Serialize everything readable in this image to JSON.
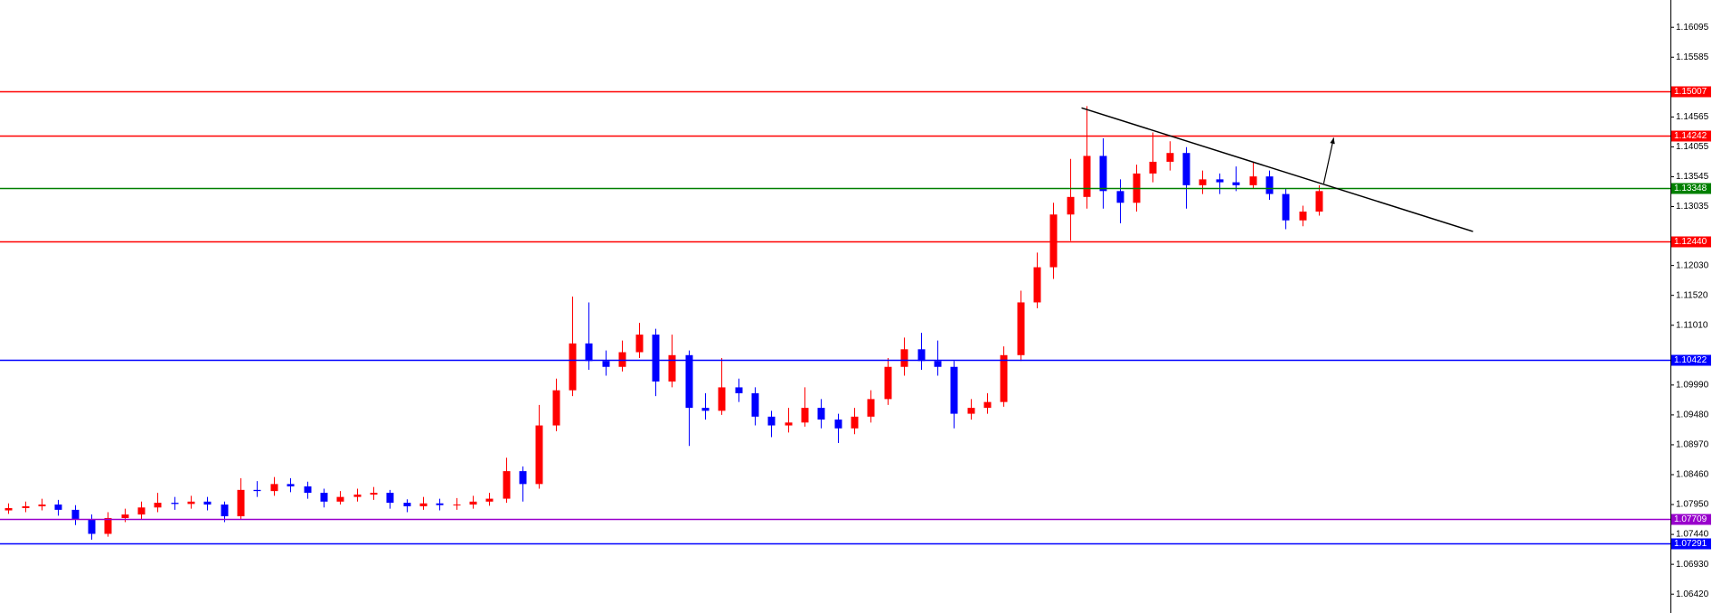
{
  "chart_data": {
    "type": "candlestick",
    "up_color": "#ff0000",
    "down_color": "#0000ff",
    "xlim": [
      -0.5,
      100.2
    ],
    "ylim": [
      1.06099,
      1.16561
    ],
    "yticks": [
      1.16095,
      1.15585,
      1.14565,
      1.14055,
      1.13545,
      1.13035,
      {
        "value": 1.1203,
        "label": "1.12030"
      },
      {
        "value": 1.1152,
        "label": "1.11520"
      },
      {
        "value": 1.1101,
        "label": "1.11010"
      },
      {
        "value": 1.0999,
        "label": "1.09990"
      },
      {
        "value": 1.0948,
        "label": "1.09480"
      },
      {
        "value": 1.0897,
        "label": "1.08970"
      },
      {
        "value": 1.0846,
        "label": "1.08460"
      },
      {
        "value": 1.0795,
        "label": "1.07950"
      },
      {
        "value": 1.0744,
        "label": "1.07440"
      },
      {
        "value": 1.0693,
        "label": "1.06930"
      },
      {
        "value": 1.0642,
        "label": "1.06420"
      }
    ],
    "open": [
      1.0785,
      1.0789,
      1.0792,
      1.0795,
      1.0786,
      1.077,
      1.0745,
      1.0772,
      1.0778,
      1.079,
      1.0798,
      1.0796,
      1.08,
      1.0795,
      1.0775,
      1.082,
      1.0818,
      1.083,
      1.0826,
      1.0815,
      1.08,
      1.0808,
      1.0812,
      1.0815,
      1.0798,
      1.0792,
      1.0797,
      1.0794,
      1.0795,
      1.08,
      1.0805,
      1.0852,
      1.083,
      1.093,
      1.099,
      1.107,
      1.104,
      1.103,
      1.1055,
      1.1085,
      1.1005,
      1.105,
      1.096,
      1.0955,
      1.0995,
      1.0985,
      1.0945,
      1.093,
      1.0935,
      1.096,
      1.094,
      1.0925,
      1.0945,
      1.0975,
      1.103,
      1.106,
      1.104,
      1.103,
      1.095,
      1.096,
      1.097,
      1.105,
      1.114,
      1.12,
      1.129,
      1.132,
      1.139,
      1.133,
      1.131,
      1.136,
      1.138,
      1.1395,
      1.134,
      1.135,
      1.1345,
      1.134,
      1.1355,
      1.1325,
      1.128,
      1.1295
    ],
    "high": [
      1.0797,
      1.08,
      1.0805,
      1.0803,
      1.0794,
      1.0778,
      1.0782,
      1.0788,
      1.08,
      1.0815,
      1.0808,
      1.081,
      1.0808,
      1.08,
      1.084,
      1.0835,
      1.0842,
      1.084,
      1.0834,
      1.0822,
      1.0818,
      1.0822,
      1.0825,
      1.082,
      1.0804,
      1.0808,
      1.0805,
      1.0806,
      1.081,
      1.0815,
      1.0875,
      1.086,
      1.0965,
      1.101,
      1.115,
      1.114,
      1.1058,
      1.1075,
      1.1105,
      1.1095,
      1.1085,
      1.1058,
      1.0985,
      1.1045,
      1.101,
      1.0995,
      1.0955,
      1.096,
      1.0995,
      1.0975,
      1.095,
      1.096,
      1.099,
      1.1045,
      1.108,
      1.1088,
      1.1075,
      1.104,
      1.0975,
      1.0985,
      1.1065,
      1.116,
      1.1225,
      1.131,
      1.1385,
      1.1475,
      1.142,
      1.135,
      1.1375,
      1.143,
      1.1415,
      1.1405,
      1.1365,
      1.136,
      1.1372,
      1.138,
      1.1365,
      1.1335,
      1.1305,
      1.134
    ],
    "low": [
      1.0779,
      1.0782,
      1.0785,
      1.0776,
      1.076,
      1.0735,
      1.074,
      1.0765,
      1.077,
      1.0782,
      1.0786,
      1.0788,
      1.0785,
      1.0765,
      1.077,
      1.0808,
      1.081,
      1.0816,
      1.0805,
      1.079,
      1.0795,
      1.08,
      1.0803,
      1.0788,
      1.0782,
      1.0786,
      1.0785,
      1.0786,
      1.0788,
      1.0793,
      1.0798,
      1.08,
      1.0822,
      1.092,
      1.098,
      1.1025,
      1.1015,
      1.1022,
      1.1045,
      1.098,
      1.0995,
      1.0895,
      1.094,
      1.0948,
      1.097,
      1.093,
      1.091,
      1.0918,
      1.0928,
      1.0925,
      1.09,
      1.0915,
      1.0935,
      1.0965,
      1.1015,
      1.1025,
      1.1015,
      1.0925,
      1.094,
      1.095,
      1.0962,
      1.104,
      1.113,
      1.118,
      1.1245,
      1.13,
      1.13,
      1.1275,
      1.1295,
      1.1345,
      1.1365,
      1.13,
      1.1325,
      1.1325,
      1.133,
      1.1335,
      1.1315,
      1.1265,
      1.127,
      1.1288
    ],
    "close": [
      1.0789,
      1.0792,
      1.0795,
      1.0786,
      1.077,
      1.0745,
      1.0772,
      1.0778,
      1.079,
      1.0798,
      1.0796,
      1.08,
      1.0795,
      1.0775,
      1.082,
      1.0818,
      1.083,
      1.0826,
      1.0815,
      1.08,
      1.0808,
      1.0812,
      1.0815,
      1.0798,
      1.0792,
      1.0797,
      1.0794,
      1.0795,
      1.08,
      1.0805,
      1.0852,
      1.083,
      1.093,
      1.099,
      1.107,
      1.104,
      1.103,
      1.1055,
      1.1085,
      1.1005,
      1.105,
      1.096,
      1.0955,
      1.0995,
      1.0985,
      1.0945,
      1.093,
      1.0935,
      1.096,
      1.094,
      1.0925,
      1.0945,
      1.0975,
      1.103,
      1.106,
      1.104,
      1.103,
      1.095,
      1.096,
      1.097,
      1.105,
      1.114,
      1.12,
      1.129,
      1.132,
      1.139,
      1.133,
      1.131,
      1.136,
      1.138,
      1.1395,
      1.134,
      1.135,
      1.1345,
      1.134,
      1.1355,
      1.1325,
      1.128,
      1.1295,
      1.133
    ],
    "levels": {
      "values": [
        1.15007,
        1.14242,
        1.13348,
        1.1244,
        1.10422,
        1.07709,
        1.07291
      ],
      "value_labels": [
        "1.15007",
        "1.14242",
        "1.13348",
        "1.12440",
        "1.10422",
        "1.07709",
        "1.07291"
      ],
      "colors": [
        "#ff0000",
        "#ff0000",
        "#008000",
        "#ff0000",
        "#0000ff",
        "#9900cc",
        "#0000ff"
      ]
    },
    "trendline": {
      "x": [
        64.7,
        88.3
      ],
      "y": [
        1.1472,
        1.1261
      ],
      "color": "#000000"
    },
    "arrow": {
      "x": [
        79.3,
        79.9
      ],
      "y": [
        1.1343,
        1.1421
      ],
      "color": "#000000"
    }
  }
}
